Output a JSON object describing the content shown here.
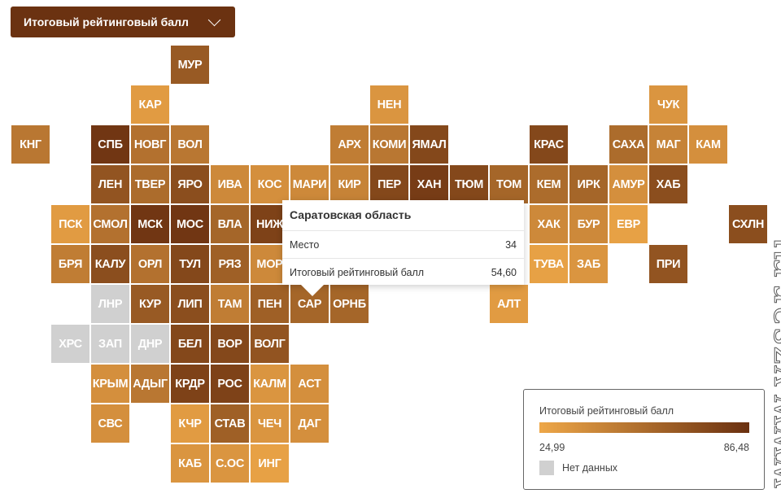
{
  "header": {
    "metric_select": "Итоговый рейтинговый балл"
  },
  "colors": {
    "low": "#eea748",
    "high": "#6a3010",
    "no_data": "#d0d0d0",
    "header_bg": "#6b3211"
  },
  "regions": [
    {
      "code": "МУР",
      "shade": 0.65
    },
    {
      "code": "КАР",
      "shade": 0.1
    },
    {
      "code": "НЕН",
      "shade": 0.15
    },
    {
      "code": "ЧУК",
      "shade": 0.15
    },
    {
      "code": "КНГ",
      "shade": 0.4
    },
    {
      "code": "СПБ",
      "shade": 0.95
    },
    {
      "code": "НОВГ",
      "shade": 0.45
    },
    {
      "code": "ВОЛ",
      "shade": 0.4
    },
    {
      "code": "АРХ",
      "shade": 0.35
    },
    {
      "code": "КОМИ",
      "shade": 0.4
    },
    {
      "code": "ЯМАЛ",
      "shade": 0.8
    },
    {
      "code": "КРАС",
      "shade": 0.8
    },
    {
      "code": "САХА",
      "shade": 0.5
    },
    {
      "code": "МАГ",
      "shade": 0.3
    },
    {
      "code": "КАМ",
      "shade": 0.2
    },
    {
      "code": "ЛЕН",
      "shade": 0.7
    },
    {
      "code": "ТВЕР",
      "shade": 0.5
    },
    {
      "code": "ЯРО",
      "shade": 0.75
    },
    {
      "code": "ИВА",
      "shade": 0.25
    },
    {
      "code": "КОС",
      "shade": 0.2
    },
    {
      "code": "МАРИ",
      "shade": 0.25
    },
    {
      "code": "КИР",
      "shade": 0.3
    },
    {
      "code": "ПЕР",
      "shade": 0.8
    },
    {
      "code": "ХАН",
      "shade": 0.9
    },
    {
      "code": "ТЮМ",
      "shade": 0.8
    },
    {
      "code": "ТОМ",
      "shade": 0.55
    },
    {
      "code": "КЕМ",
      "shade": 0.5
    },
    {
      "code": "ИРК",
      "shade": 0.55
    },
    {
      "code": "АМУР",
      "shade": 0.2
    },
    {
      "code": "ХАБ",
      "shade": 0.75
    },
    {
      "code": "ПСК",
      "shade": 0.1
    },
    {
      "code": "СМОЛ",
      "shade": 0.45
    },
    {
      "code": "МСК",
      "shade": 0.95
    },
    {
      "code": "МОС",
      "shade": 0.95
    },
    {
      "code": "ВЛА",
      "shade": 0.55
    },
    {
      "code": "НИЖ",
      "shade": 0.85
    },
    {
      "code": "ХАК",
      "shade": 0.25
    },
    {
      "code": "БУР",
      "shade": 0.25
    },
    {
      "code": "ЕВР",
      "shade": 0.05
    },
    {
      "code": "СХЛН",
      "shade": 0.75
    },
    {
      "code": "БРЯ",
      "shade": 0.35
    },
    {
      "code": "КАЛУ",
      "shade": 0.75
    },
    {
      "code": "ОРЛ",
      "shade": 0.45
    },
    {
      "code": "ТУЛ",
      "shade": 0.8
    },
    {
      "code": "РЯЗ",
      "shade": 0.6
    },
    {
      "code": "МОР",
      "shade": 0.25
    },
    {
      "code": "ТУВА",
      "shade": 0.05
    },
    {
      "code": "ЗАБ",
      "shade": 0.15
    },
    {
      "code": "ПРИ",
      "shade": 0.7
    },
    {
      "code": "ЛНР",
      "shade": null
    },
    {
      "code": "КУР",
      "shade": 0.65
    },
    {
      "code": "ЛИП",
      "shade": 0.75
    },
    {
      "code": "ТАМ",
      "shade": 0.35
    },
    {
      "code": "ПЕН",
      "shade": 0.6
    },
    {
      "code": "САР",
      "shade": 0.55
    },
    {
      "code": "ОРНБ",
      "shade": 0.55
    },
    {
      "code": "АЛТ",
      "shade": 0.1
    },
    {
      "code": "ХРС",
      "shade": null
    },
    {
      "code": "ЗАП",
      "shade": null
    },
    {
      "code": "ДНР",
      "shade": null
    },
    {
      "code": "БЕЛ",
      "shade": 0.8
    },
    {
      "code": "ВОР",
      "shade": 0.8
    },
    {
      "code": "ВОЛГ",
      "shade": 0.7
    },
    {
      "code": "КРЫМ",
      "shade": 0.2
    },
    {
      "code": "АДЫГ",
      "shade": 0.4
    },
    {
      "code": "КРДР",
      "shade": 0.85
    },
    {
      "code": "РОС",
      "shade": 0.85
    },
    {
      "code": "КАЛМ",
      "shade": 0.15
    },
    {
      "code": "АСТ",
      "shade": 0.2
    },
    {
      "code": "СВС",
      "shade": 0.2
    },
    {
      "code": "КЧР",
      "shade": 0.1
    },
    {
      "code": "СТАВ",
      "shade": 0.6
    },
    {
      "code": "ЧЕЧ",
      "shade": 0.15
    },
    {
      "code": "ДАГ",
      "shade": 0.2
    },
    {
      "code": "КАБ",
      "shade": 0.15
    },
    {
      "code": "С.ОС",
      "shade": 0.15
    },
    {
      "code": "ИНГ",
      "shade": 0.05
    }
  ],
  "tooltip": {
    "title": "Саратовская область",
    "rows": [
      {
        "label": "Место",
        "value": "34"
      },
      {
        "label": "Итоговый рейтинговый балл",
        "value": "54,60"
      }
    ]
  },
  "legend": {
    "title": "Итоговый рейтинговый балл",
    "min": "24,99",
    "max": "86,48",
    "no_data": "Нет данных"
  },
  "watermark": "www.vzsar.ru"
}
